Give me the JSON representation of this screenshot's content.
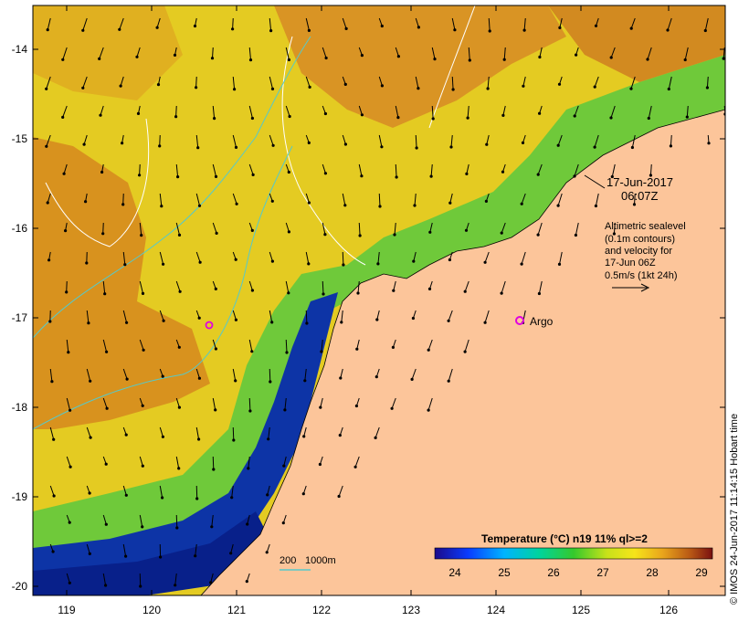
{
  "map": {
    "lat_labels": [
      "-14",
      "-15",
      "-16",
      "-17",
      "-18",
      "-19",
      "-20"
    ],
    "lon_labels": [
      "119",
      "120",
      "121",
      "122",
      "123",
      "124",
      "125",
      "126"
    ],
    "timestamp_line1": "17-Jun-2017",
    "timestamp_line2": "06:07Z",
    "info_lines": [
      "Altimetric sealevel",
      "(0.1m contours)",
      "and velocity for",
      "17-Jun 06Z",
      "0.5m/s (1kt 24h)"
    ],
    "argo_label": "Argo",
    "depth_label_1": "200",
    "depth_label_2": "1000m",
    "colorbar_title": "Temperature (°C) n19 11% ql>=2",
    "colorbar_ticks": [
      "24",
      "25",
      "26",
      "27",
      "28",
      "29"
    ],
    "credit": "© IMOS 24-Jun-2017 11:14:15 Hobart time"
  },
  "colors": {
    "land": "#fcc59a",
    "warm": "#d68a1e",
    "mid": "#f2e019",
    "cool": "#3fbf3a",
    "cold": "#0b2a9e",
    "contour": "#57c9c9",
    "argo": "#e000e0"
  }
}
